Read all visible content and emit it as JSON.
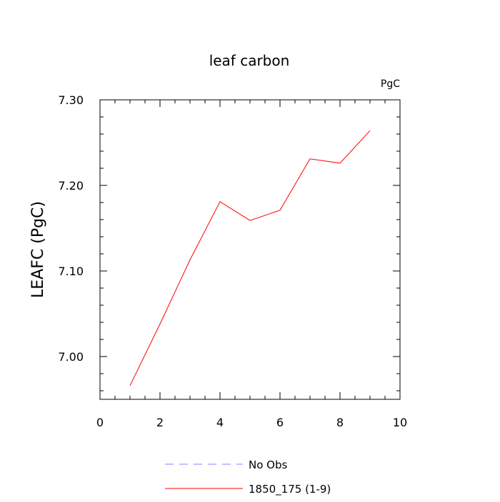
{
  "chart_data": {
    "type": "line",
    "title": "leaf carbon",
    "units_label": "PgC",
    "ylabel": "LEAFC  (PgC)",
    "xlabel": "",
    "xlim": [
      0,
      10
    ],
    "ylim": [
      6.95,
      7.3
    ],
    "x_ticks": [
      0,
      2,
      4,
      6,
      8,
      10
    ],
    "x_tick_labels": [
      "0",
      "2",
      "4",
      "6",
      "8",
      "10"
    ],
    "y_ticks": [
      7.0,
      7.1,
      7.2,
      7.3
    ],
    "y_tick_labels": [
      "7.00",
      "7.10",
      "7.20",
      "7.30"
    ],
    "x_minor_step": 0.5,
    "y_minor_step": 0.02,
    "grid": false,
    "legend_position": "bottom",
    "series": [
      {
        "name": "1850_175 (1-9)",
        "color": "#ff0000",
        "dash": "solid",
        "x": [
          1,
          2,
          3,
          4,
          5,
          6,
          7,
          8,
          9
        ],
        "y": [
          6.966,
          7.038,
          7.113,
          7.181,
          7.159,
          7.171,
          7.231,
          7.226,
          7.264
        ]
      }
    ],
    "legend": [
      {
        "label": "No Obs",
        "color": "#8080ff",
        "dash": "dashed"
      },
      {
        "label": "1850_175 (1-9)",
        "color": "#ff0000",
        "dash": "solid"
      }
    ]
  }
}
